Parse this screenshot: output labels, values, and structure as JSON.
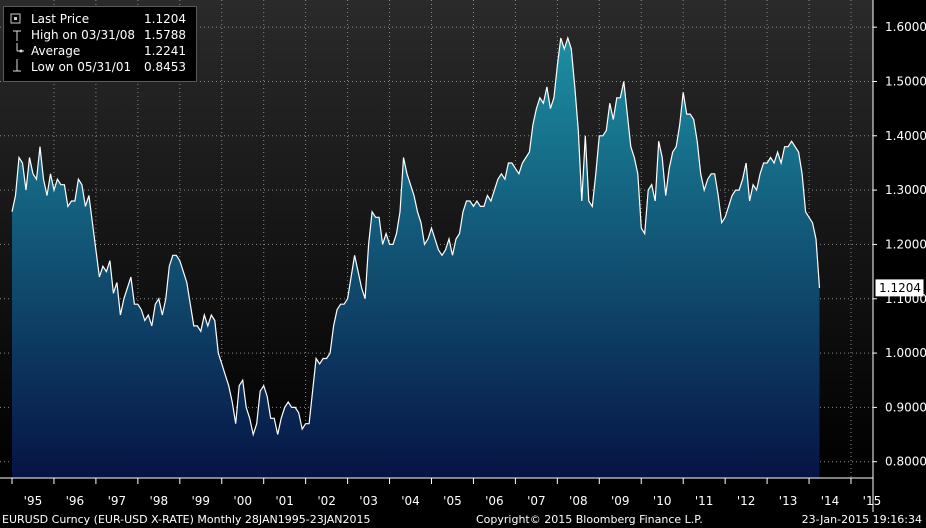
{
  "legend": {
    "rows": [
      {
        "icon": "filled-square-icon",
        "label": "Last Price",
        "value": "1.1204"
      },
      {
        "icon": "high-marker-icon",
        "label": "High on 03/31/08",
        "value": "1.5788"
      },
      {
        "icon": "average-line-icon",
        "label": "Average",
        "value": "1.2241"
      },
      {
        "icon": "low-marker-icon",
        "label": "Low on 05/31/01",
        "value": "0.8453"
      }
    ]
  },
  "last_price_tag": "1.1204",
  "footer": {
    "left": "EURUSD Curncy (EUR-USD X-RATE)  Monthly 28JAN1995-23JAN2015",
    "center": "Copyright© 2015 Bloomberg Finance L.P.",
    "right": "23-Jan-2015 19:16:34"
  },
  "colors": {
    "background": "#000000",
    "line": "#ffffff",
    "area_top": "#1c8fa2",
    "area_bottom": "#061444",
    "grid": "#8a8a8a"
  },
  "chart_data": {
    "type": "area",
    "title": "",
    "xlabel": "",
    "ylabel": "",
    "frequency": "Monthly",
    "x_ticks": [
      "'95",
      "'96",
      "'97",
      "'98",
      "'99",
      "'00",
      "'01",
      "'02",
      "'03",
      "'04",
      "'05",
      "'06",
      "'07",
      "'08",
      "'09",
      "'10",
      "'11",
      "'12",
      "'13",
      "'14",
      "'15"
    ],
    "y_ticks": [
      "1.6000",
      "1.5000",
      "1.4000",
      "1.3000",
      "1.2000",
      "1.1000",
      "1.0000",
      "0.9000",
      "0.8000"
    ],
    "ylim": [
      0.77,
      1.65
    ],
    "xlim": [
      "1995-01",
      "2015-01"
    ],
    "grid": true,
    "y_axis_side": "right",
    "legend_position": "top-left",
    "series": [
      {
        "name": "Last Price",
        "x_start": "1995-01",
        "values": [
          1.26,
          1.29,
          1.36,
          1.35,
          1.3,
          1.36,
          1.33,
          1.32,
          1.38,
          1.32,
          1.29,
          1.33,
          1.3,
          1.32,
          1.31,
          1.31,
          1.27,
          1.28,
          1.28,
          1.32,
          1.31,
          1.27,
          1.29,
          1.24,
          1.19,
          1.14,
          1.16,
          1.15,
          1.17,
          1.11,
          1.13,
          1.07,
          1.1,
          1.12,
          1.14,
          1.09,
          1.09,
          1.08,
          1.06,
          1.07,
          1.05,
          1.09,
          1.1,
          1.07,
          1.1,
          1.16,
          1.18,
          1.18,
          1.17,
          1.15,
          1.13,
          1.09,
          1.05,
          1.05,
          1.04,
          1.07,
          1.05,
          1.07,
          1.06,
          1.0,
          0.98,
          0.96,
          0.94,
          0.91,
          0.87,
          0.94,
          0.95,
          0.9,
          0.88,
          0.85,
          0.87,
          0.93,
          0.94,
          0.92,
          0.88,
          0.88,
          0.85,
          0.88,
          0.9,
          0.91,
          0.9,
          0.9,
          0.89,
          0.86,
          0.87,
          0.87,
          0.93,
          0.99,
          0.98,
          0.99,
          0.99,
          1.0,
          1.05,
          1.08,
          1.09,
          1.09,
          1.1,
          1.14,
          1.18,
          1.15,
          1.12,
          1.1,
          1.2,
          1.26,
          1.25,
          1.25,
          1.2,
          1.22,
          1.2,
          1.2,
          1.22,
          1.26,
          1.36,
          1.33,
          1.31,
          1.29,
          1.26,
          1.24,
          1.2,
          1.21,
          1.23,
          1.21,
          1.19,
          1.18,
          1.19,
          1.21,
          1.18,
          1.21,
          1.22,
          1.26,
          1.28,
          1.28,
          1.27,
          1.28,
          1.27,
          1.27,
          1.29,
          1.28,
          1.3,
          1.32,
          1.33,
          1.32,
          1.35,
          1.35,
          1.34,
          1.33,
          1.35,
          1.36,
          1.37,
          1.42,
          1.45,
          1.47,
          1.46,
          1.49,
          1.45,
          1.47,
          1.53,
          1.58,
          1.56,
          1.58,
          1.56,
          1.49,
          1.41,
          1.28,
          1.4,
          1.28,
          1.27,
          1.33,
          1.4,
          1.4,
          1.41,
          1.46,
          1.43,
          1.47,
          1.47,
          1.5,
          1.44,
          1.38,
          1.36,
          1.33,
          1.23,
          1.22,
          1.3,
          1.31,
          1.28,
          1.39,
          1.36,
          1.29,
          1.34,
          1.37,
          1.38,
          1.42,
          1.48,
          1.44,
          1.44,
          1.43,
          1.39,
          1.33,
          1.3,
          1.32,
          1.33,
          1.33,
          1.29,
          1.24,
          1.25,
          1.27,
          1.29,
          1.3,
          1.3,
          1.32,
          1.35,
          1.28,
          1.31,
          1.3,
          1.33,
          1.35,
          1.35,
          1.36,
          1.35,
          1.37,
          1.35,
          1.38,
          1.38,
          1.39,
          1.38,
          1.37,
          1.33,
          1.26,
          1.25,
          1.24,
          1.21,
          1.12
        ]
      }
    ]
  }
}
